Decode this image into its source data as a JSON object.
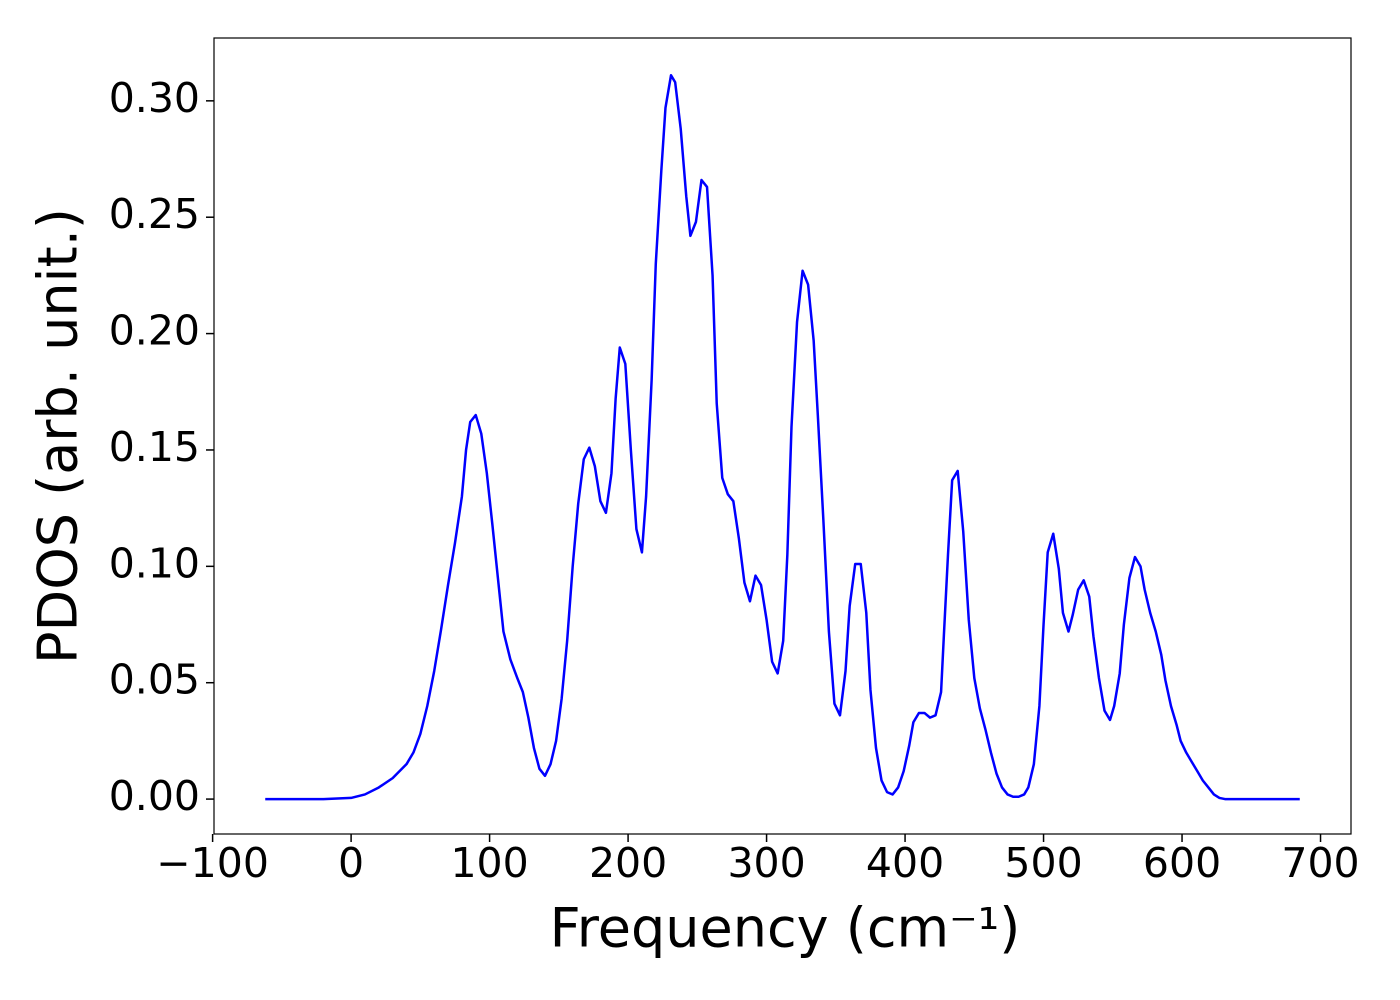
{
  "chart_data": {
    "type": "line",
    "x_label": "Frequency (cm⁻¹)",
    "y_label": "PDOS (arb. unit.)",
    "xlim": [
      -99,
      722
    ],
    "ylim": [
      -0.015,
      0.327
    ],
    "xticks": [
      {
        "value": -100,
        "label": "−100"
      },
      0,
      100,
      200,
      300,
      400,
      500,
      600,
      700
    ],
    "yticks": [
      {
        "value": 0,
        "label": "0.00"
      },
      {
        "value": 0.05,
        "label": "0.05"
      },
      {
        "value": 0.1,
        "label": "0.10"
      },
      {
        "value": 0.15,
        "label": "0.15"
      },
      {
        "value": 0.2,
        "label": "0.20"
      },
      {
        "value": 0.25,
        "label": "0.25"
      },
      {
        "value": 0.3,
        "label": "0.30"
      }
    ],
    "series": [
      {
        "color": "#0000ff",
        "x": [
          -62,
          -40,
          -20,
          0,
          10,
          20,
          30,
          40,
          45,
          50,
          55,
          60,
          65,
          70,
          75,
          80,
          83,
          86,
          90,
          94,
          98,
          102,
          106,
          110,
          115,
          120,
          124,
          128,
          132,
          136,
          140,
          144,
          148,
          152,
          156,
          160,
          164,
          168,
          172,
          176,
          180,
          184,
          188,
          191,
          194,
          198,
          202,
          206,
          210,
          213,
          217,
          220,
          224,
          227,
          231,
          234,
          238,
          242,
          245,
          249,
          253,
          257,
          261,
          264,
          268,
          272,
          276,
          280,
          284,
          288,
          292,
          296,
          300,
          304,
          308,
          312,
          315,
          318,
          322,
          326,
          330,
          334,
          337,
          341,
          345,
          349,
          353,
          357,
          360,
          364,
          368,
          372,
          375,
          379,
          383,
          387,
          391,
          395,
          399,
          403,
          406,
          410,
          414,
          418,
          422,
          426,
          428,
          431,
          434,
          438,
          442,
          446,
          450,
          454,
          458,
          462,
          466,
          470,
          474,
          478,
          482,
          486,
          489,
          493,
          497,
          500,
          503,
          507,
          511,
          514,
          518,
          521,
          525,
          529,
          533,
          536,
          540,
          544,
          548,
          551,
          555,
          558,
          562,
          566,
          570,
          573,
          577,
          581,
          585,
          588,
          592,
          596,
          599,
          603,
          607,
          611,
          615,
          619,
          623,
          627,
          631,
          640,
          685
        ],
        "values": [
          0,
          0,
          0,
          0.0005,
          0.002,
          0.005,
          0.009,
          0.015,
          0.02,
          0.028,
          0.04,
          0.055,
          0.073,
          0.092,
          0.11,
          0.13,
          0.15,
          0.162,
          0.165,
          0.157,
          0.14,
          0.118,
          0.095,
          0.072,
          0.06,
          0.052,
          0.046,
          0.035,
          0.022,
          0.013,
          0.01,
          0.015,
          0.025,
          0.043,
          0.068,
          0.1,
          0.127,
          0.146,
          0.151,
          0.143,
          0.128,
          0.123,
          0.14,
          0.172,
          0.194,
          0.187,
          0.15,
          0.116,
          0.106,
          0.13,
          0.18,
          0.23,
          0.27,
          0.297,
          0.311,
          0.308,
          0.288,
          0.259,
          0.242,
          0.248,
          0.266,
          0.263,
          0.225,
          0.17,
          0.138,
          0.131,
          0.128,
          0.112,
          0.093,
          0.085,
          0.096,
          0.092,
          0.077,
          0.059,
          0.054,
          0.068,
          0.105,
          0.16,
          0.205,
          0.227,
          0.221,
          0.197,
          0.165,
          0.12,
          0.072,
          0.041,
          0.036,
          0.055,
          0.083,
          0.101,
          0.101,
          0.08,
          0.047,
          0.022,
          0.008,
          0.003,
          0.002,
          0.005,
          0.012,
          0.023,
          0.033,
          0.037,
          0.037,
          0.035,
          0.036,
          0.046,
          0.07,
          0.105,
          0.137,
          0.141,
          0.115,
          0.077,
          0.052,
          0.039,
          0.03,
          0.02,
          0.011,
          0.005,
          0.002,
          0.001,
          0.001,
          0.002,
          0.005,
          0.015,
          0.04,
          0.075,
          0.106,
          0.114,
          0.099,
          0.08,
          0.072,
          0.079,
          0.09,
          0.094,
          0.087,
          0.07,
          0.052,
          0.038,
          0.034,
          0.04,
          0.054,
          0.075,
          0.095,
          0.104,
          0.1,
          0.09,
          0.08,
          0.072,
          0.062,
          0.051,
          0.04,
          0.032,
          0.025,
          0.02,
          0.016,
          0.012,
          0.008,
          0.005,
          0.002,
          0.0005,
          0,
          0,
          0
        ]
      }
    ]
  }
}
